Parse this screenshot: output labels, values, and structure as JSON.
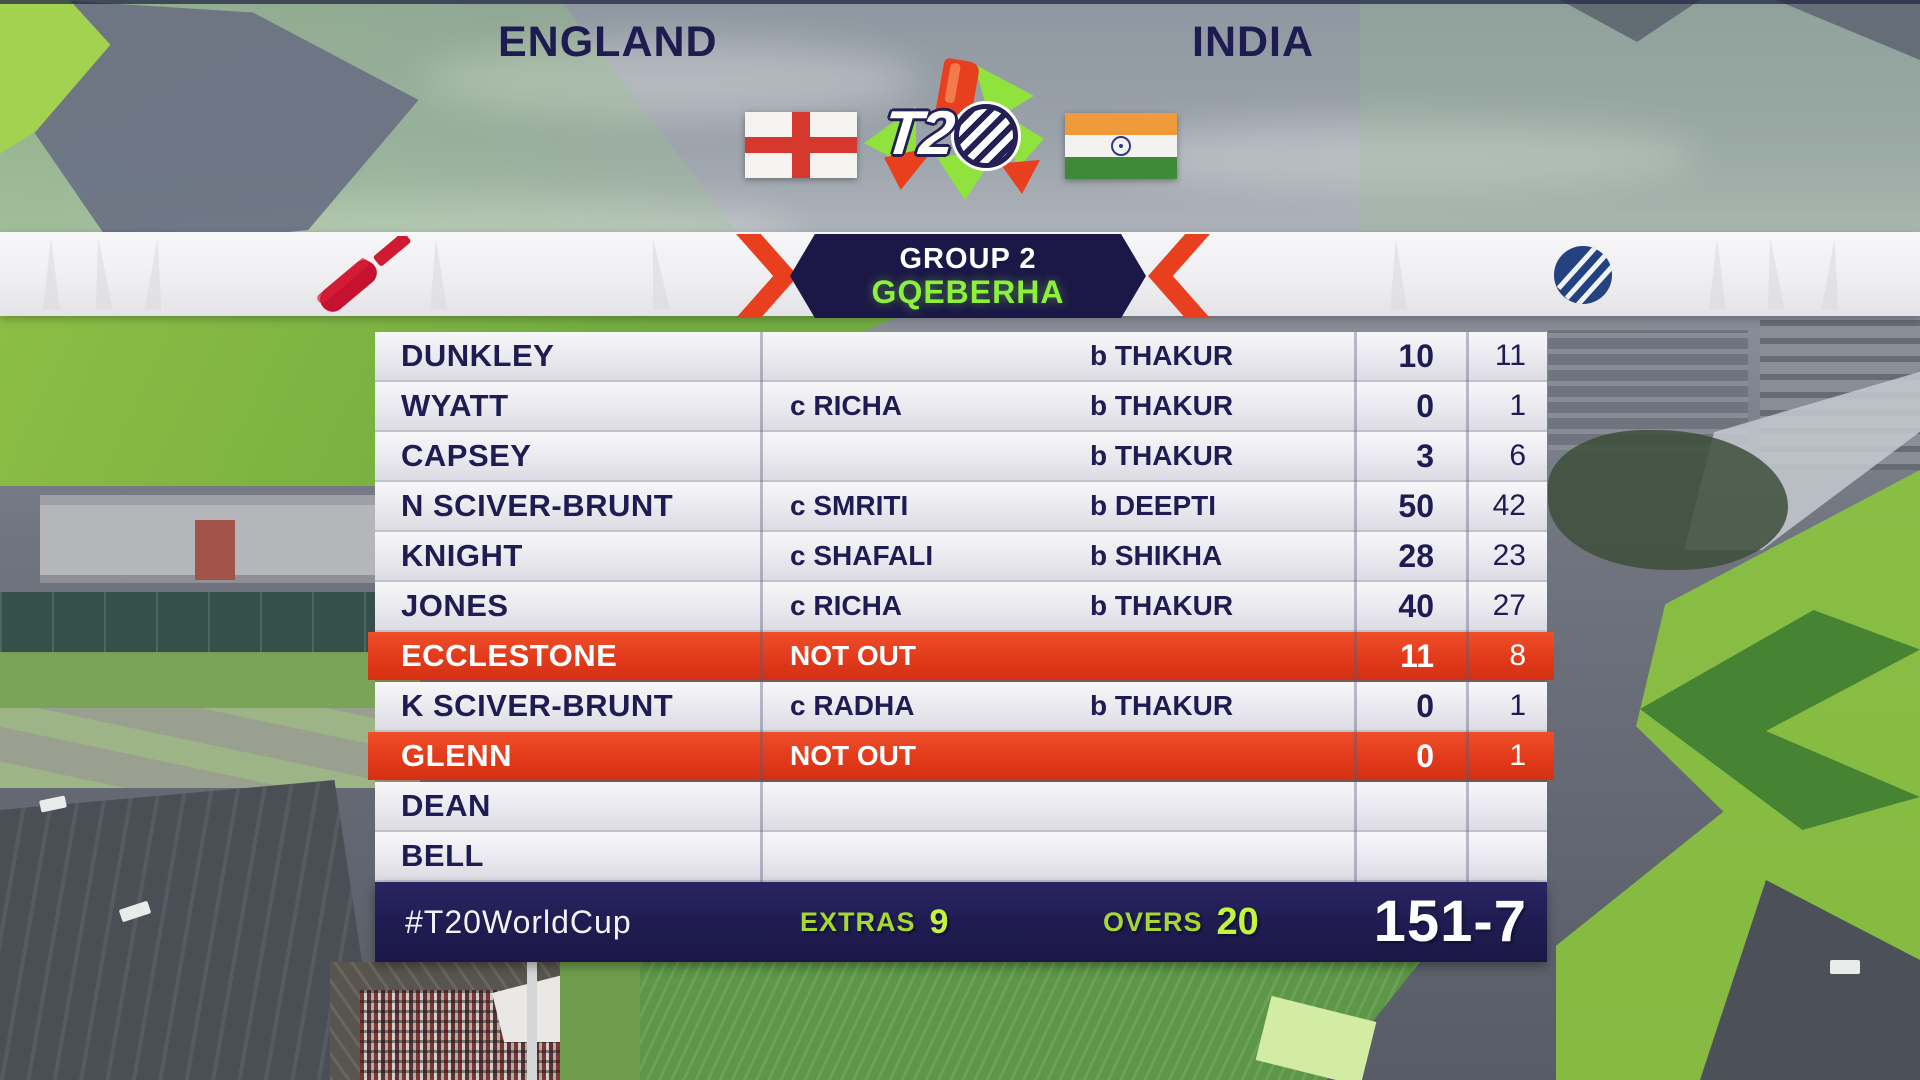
{
  "header": {
    "left_team": "ENGLAND",
    "right_team": "INDIA",
    "badge_line1": "GROUP 2",
    "badge_line2": "GQEBERHA"
  },
  "scorecard": {
    "rows": [
      {
        "name": "DUNKLEY",
        "dismissal_catch": "",
        "dismissal_bowl": "b THAKUR",
        "runs": "10",
        "balls": "11",
        "highlight": false
      },
      {
        "name": "WYATT",
        "dismissal_catch": "c RICHA",
        "dismissal_bowl": "b THAKUR",
        "runs": "0",
        "balls": "1",
        "highlight": false
      },
      {
        "name": "CAPSEY",
        "dismissal_catch": "",
        "dismissal_bowl": "b THAKUR",
        "runs": "3",
        "balls": "6",
        "highlight": false
      },
      {
        "name": "N SCIVER-BRUNT",
        "dismissal_catch": "c SMRITI",
        "dismissal_bowl": "b DEEPTI",
        "runs": "50",
        "balls": "42",
        "highlight": false
      },
      {
        "name": "KNIGHT",
        "dismissal_catch": "c SHAFALI",
        "dismissal_bowl": "b SHIKHA",
        "runs": "28",
        "balls": "23",
        "highlight": false
      },
      {
        "name": "JONES",
        "dismissal_catch": "c RICHA",
        "dismissal_bowl": "b THAKUR",
        "runs": "40",
        "balls": "27",
        "highlight": false
      },
      {
        "name": "ECCLESTONE",
        "dismissal_catch": "NOT OUT",
        "dismissal_bowl": "",
        "runs": "11",
        "balls": "8",
        "highlight": true
      },
      {
        "name": "K SCIVER-BRUNT",
        "dismissal_catch": "c RADHA",
        "dismissal_bowl": "b THAKUR",
        "runs": "0",
        "balls": "1",
        "highlight": false
      },
      {
        "name": "GLENN",
        "dismissal_catch": "NOT OUT",
        "dismissal_bowl": "",
        "runs": "0",
        "balls": "1",
        "highlight": true
      },
      {
        "name": "DEAN",
        "dismissal_catch": "",
        "dismissal_bowl": "",
        "runs": "",
        "balls": "",
        "highlight": false
      },
      {
        "name": "BELL",
        "dismissal_catch": "",
        "dismissal_bowl": "",
        "runs": "",
        "balls": "",
        "highlight": false
      }
    ]
  },
  "footer": {
    "hashtag": "#T20WorldCup",
    "extras_label": "EXTRAS",
    "extras_value": "9",
    "overs_label": "OVERS",
    "overs_value": "20",
    "total": "151-7"
  },
  "icons": {
    "left_team_icon": "cricket-bat-icon",
    "right_team_icon": "broadcaster-ball-icon",
    "center_logo": "t20-world-cup-logo",
    "flags": [
      "england-flag",
      "india-flag"
    ]
  },
  "colors": {
    "navy": "#1e1c52",
    "badge_navy": "#1b1847",
    "footer_navy": "#211d54",
    "highlight_red": "#e23a1b",
    "venue_green": "#8df03c",
    "footer_green": "#c2f53c",
    "band_white": "#f3f2f4"
  }
}
